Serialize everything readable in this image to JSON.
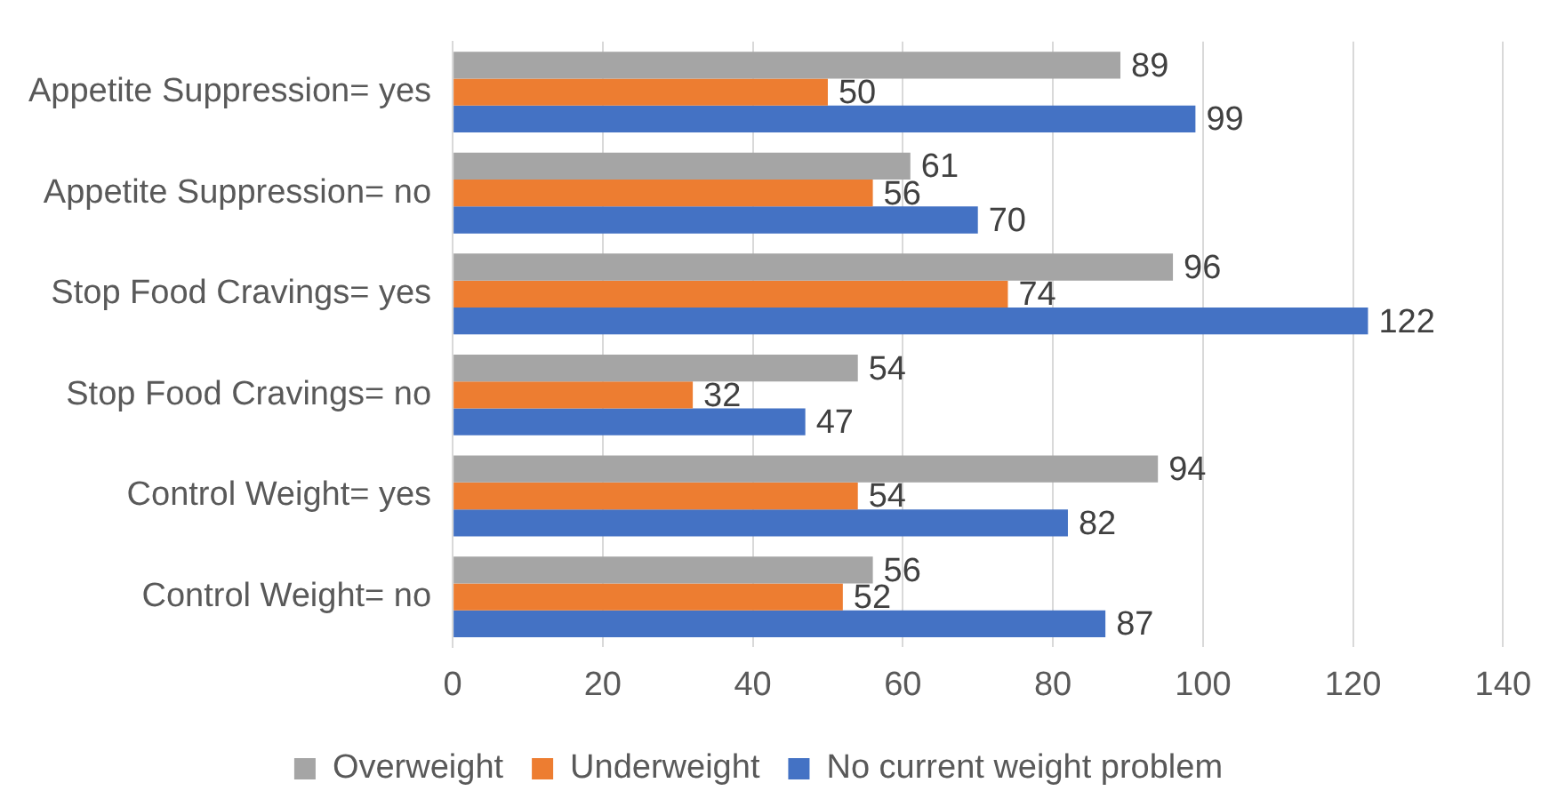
{
  "chart_data": {
    "type": "bar",
    "orientation": "horizontal",
    "categories": [
      "Appetite Suppression= yes",
      "Appetite Suppression= no",
      "Stop Food Cravings= yes",
      "Stop Food Cravings= no",
      "Control Weight= yes",
      "Control Weight= no"
    ],
    "series": [
      {
        "name": "Overweight",
        "color": "#a5a5a5",
        "values": [
          89,
          61,
          96,
          54,
          94,
          56
        ]
      },
      {
        "name": "Underweight",
        "color": "#ed7d31",
        "values": [
          50,
          56,
          74,
          32,
          54,
          52
        ]
      },
      {
        "name": "No current weight problem",
        "color": "#4472c4",
        "values": [
          99,
          70,
          122,
          47,
          82,
          87
        ]
      }
    ],
    "xlim": [
      0,
      140
    ],
    "xticks": [
      0,
      20,
      40,
      60,
      80,
      100,
      120,
      140
    ],
    "grid": "x",
    "legend": "bottom",
    "data_labels": true
  }
}
